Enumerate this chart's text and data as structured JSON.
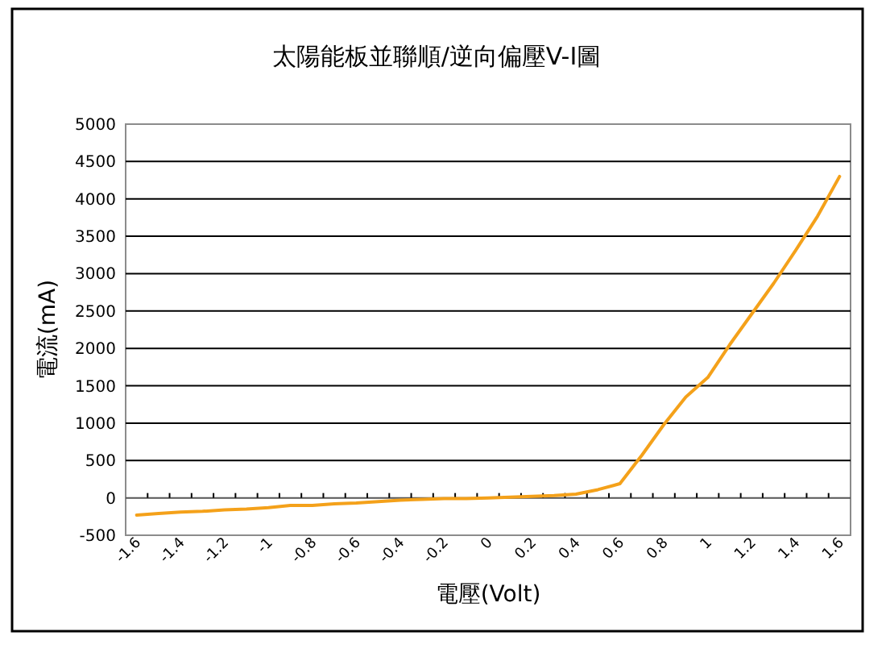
{
  "chart_data": {
    "type": "line",
    "title": "太陽能板並聯順/逆向偏壓V-I圖",
    "xlabel": "電壓(Volt)",
    "ylabel": "電流(mA)",
    "categories": [
      "-1.6",
      null,
      "-1.4",
      null,
      "-1.2",
      null,
      "-1",
      null,
      "-0.8",
      null,
      "-0.6",
      null,
      "-0.4",
      null,
      "-0.2",
      null,
      "0",
      null,
      "0.2",
      null,
      "0.4",
      null,
      "0.6",
      null,
      "0.8",
      null,
      "1",
      null,
      "1.2",
      null,
      "1.4",
      null,
      "1.6"
    ],
    "series": [
      {
        "color": "#f4a11a",
        "values": [
          -230,
          -210,
          -190,
          -180,
          -160,
          -150,
          -130,
          -100,
          -100,
          -80,
          -70,
          -50,
          -30,
          -20,
          -10,
          -10,
          0,
          10,
          20,
          30,
          50,
          110,
          190,
          570,
          980,
          1350,
          1610,
          2050,
          2460,
          2870,
          3310,
          3770,
          4300
        ]
      }
    ],
    "ylim": [
      -500,
      5000
    ],
    "yticks": [
      -500,
      0,
      500,
      1000,
      1500,
      2000,
      2500,
      3000,
      3500,
      4000,
      4500,
      5000
    ],
    "grid": "y"
  }
}
